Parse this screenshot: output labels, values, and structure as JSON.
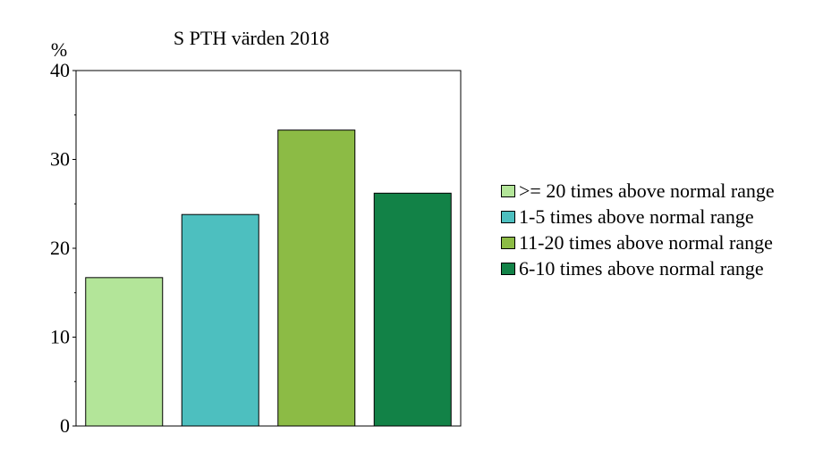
{
  "chart_data": {
    "type": "bar",
    "title": "S PTH värden 2018",
    "ylabel": "%",
    "xlabel": "",
    "ylim": [
      0,
      40
    ],
    "yticks": [
      0,
      10,
      20,
      30,
      40
    ],
    "grid": false,
    "legend_position": "right",
    "categories": [
      ">= 20 times above normal range",
      "1-5 times above normal range",
      "11-20 times above normal range",
      "6-10 times above normal range"
    ],
    "values": [
      16.7,
      23.8,
      33.3,
      26.2
    ],
    "colors": [
      "#b3e599",
      "#4dbfbf",
      "#8cbb45",
      "#128247"
    ]
  }
}
